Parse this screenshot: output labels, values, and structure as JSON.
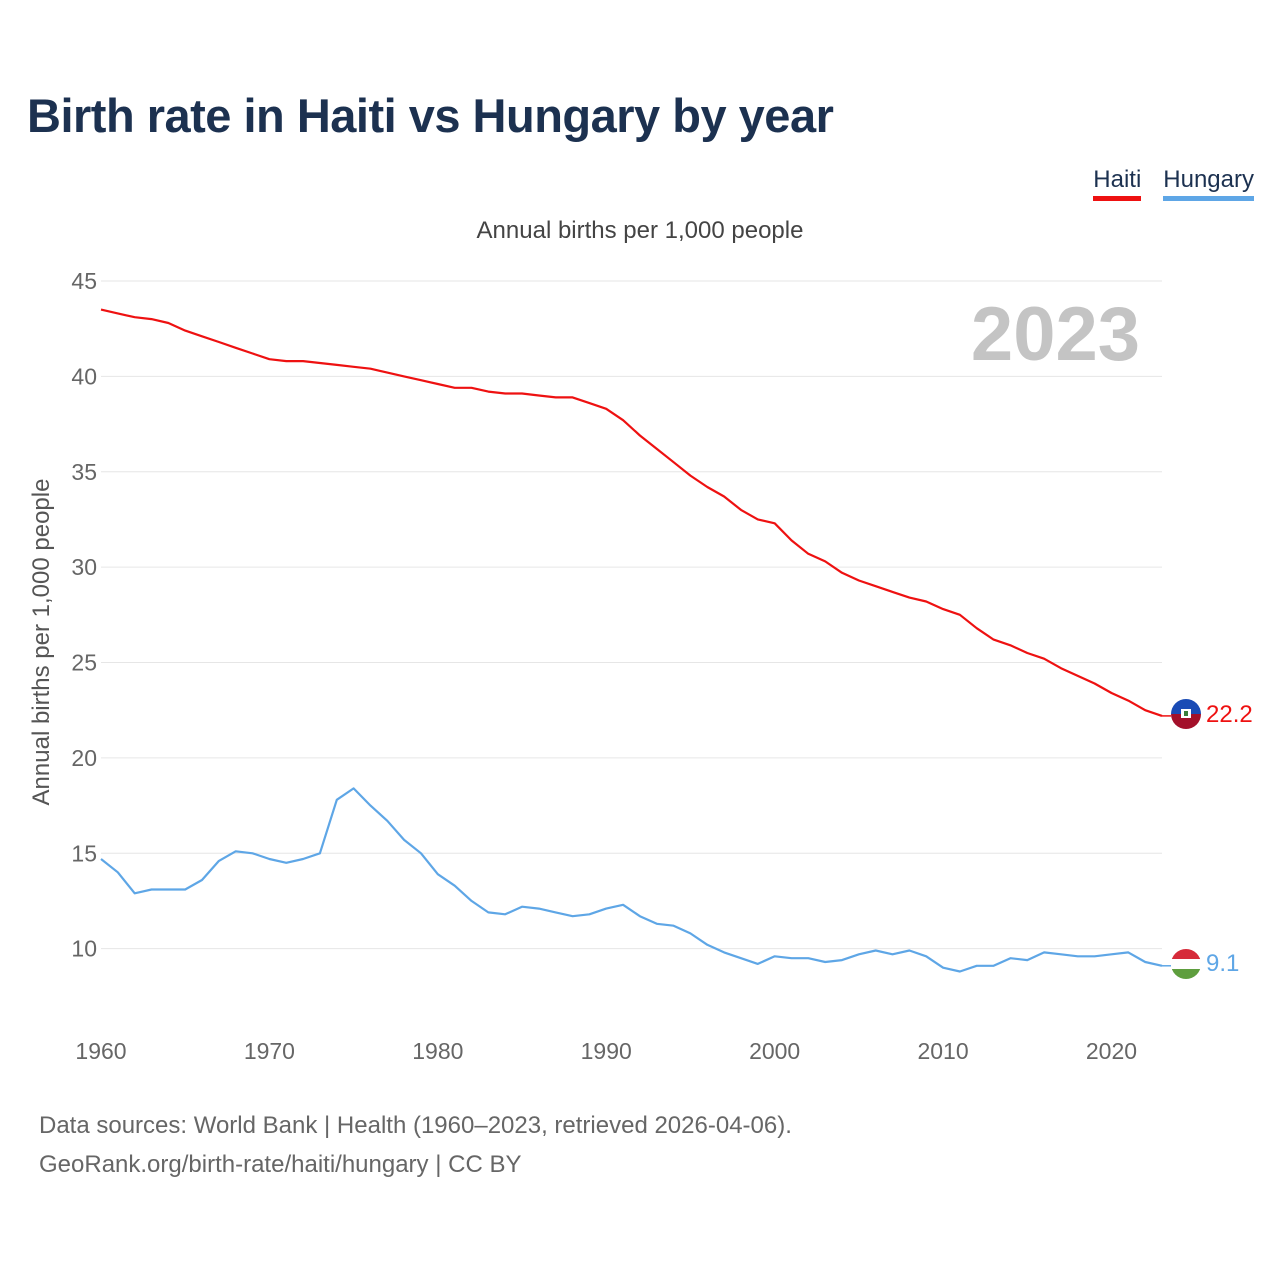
{
  "header": {
    "title": "Birth rate in Haiti vs Hungary by year",
    "subtitle": "Annual births per 1,000 people"
  },
  "legend": {
    "haiti": "Haiti",
    "hungary": "Hungary"
  },
  "footer": {
    "line1": "Data sources: World Bank | Health (1960–2023, retrieved 2026-04-06).",
    "line2": "GeoRank.org/birth-rate/haiti/hungary | CC BY"
  },
  "colors": {
    "haiti": "#ee1111",
    "hungary": "#5ea6e6",
    "grid": "#e6e6e6"
  },
  "chart_data": {
    "type": "line",
    "title": "Birth rate in Haiti vs Hungary by year",
    "ylabel": "Annual births per 1,000 people",
    "xlabel": "",
    "year_watermark": "2023",
    "xlim": [
      1960,
      2023
    ],
    "ylim": [
      5,
      45
    ],
    "x_ticks": [
      1960,
      1970,
      1980,
      1990,
      2000,
      2010,
      2020
    ],
    "y_ticks": [
      10,
      15,
      20,
      25,
      30,
      35,
      40,
      45
    ],
    "x": [
      1960,
      1961,
      1962,
      1963,
      1964,
      1965,
      1966,
      1967,
      1968,
      1969,
      1970,
      1971,
      1972,
      1973,
      1974,
      1975,
      1976,
      1977,
      1978,
      1979,
      1980,
      1981,
      1982,
      1983,
      1984,
      1985,
      1986,
      1987,
      1988,
      1989,
      1990,
      1991,
      1992,
      1993,
      1994,
      1995,
      1996,
      1997,
      1998,
      1999,
      2000,
      2001,
      2002,
      2003,
      2004,
      2005,
      2006,
      2007,
      2008,
      2009,
      2010,
      2011,
      2012,
      2013,
      2014,
      2015,
      2016,
      2017,
      2018,
      2019,
      2020,
      2021,
      2022,
      2023
    ],
    "series": [
      {
        "name": "Haiti",
        "end_label": "22.2",
        "values": [
          43.5,
          43.3,
          43.1,
          43.0,
          42.8,
          42.4,
          42.1,
          41.8,
          41.5,
          41.2,
          40.9,
          40.8,
          40.8,
          40.7,
          40.6,
          40.5,
          40.4,
          40.2,
          40.0,
          39.8,
          39.6,
          39.4,
          39.4,
          39.2,
          39.1,
          39.1,
          39.0,
          38.9,
          38.9,
          38.6,
          38.3,
          37.7,
          36.9,
          36.2,
          35.5,
          34.8,
          34.2,
          33.7,
          33.0,
          32.5,
          32.3,
          31.4,
          30.7,
          30.3,
          29.7,
          29.3,
          29.0,
          28.7,
          28.4,
          28.2,
          27.8,
          27.5,
          26.8,
          26.2,
          25.9,
          25.5,
          25.2,
          24.7,
          24.3,
          23.9,
          23.4,
          23.0,
          22.5,
          22.2
        ]
      },
      {
        "name": "Hungary",
        "end_label": "9.1",
        "values": [
          14.7,
          14.0,
          12.9,
          13.1,
          13.1,
          13.1,
          13.6,
          14.6,
          15.1,
          15.0,
          14.7,
          14.5,
          14.7,
          15.0,
          17.8,
          18.4,
          17.5,
          16.7,
          15.7,
          15.0,
          13.9,
          13.3,
          12.5,
          11.9,
          11.8,
          12.2,
          12.1,
          11.9,
          11.7,
          11.8,
          12.1,
          12.3,
          11.7,
          11.3,
          11.2,
          10.8,
          10.2,
          9.8,
          9.5,
          9.2,
          9.6,
          9.5,
          9.5,
          9.3,
          9.4,
          9.7,
          9.9,
          9.7,
          9.9,
          9.6,
          9.0,
          8.8,
          9.1,
          9.1,
          9.5,
          9.4,
          9.8,
          9.7,
          9.6,
          9.6,
          9.7,
          9.8,
          9.3,
          9.1
        ]
      }
    ]
  }
}
